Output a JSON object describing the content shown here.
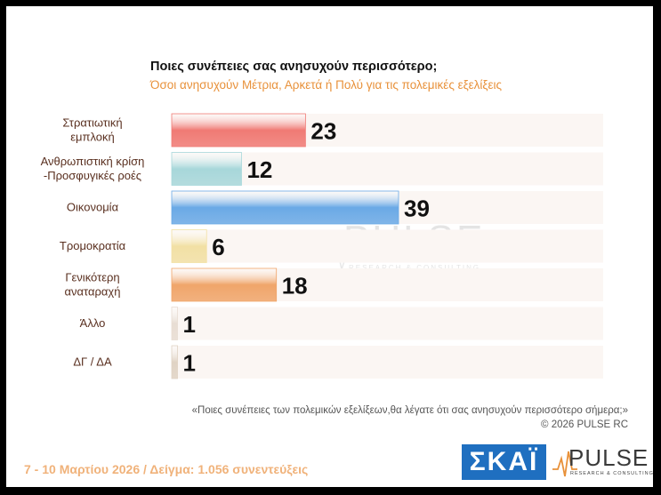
{
  "title": "Ποιες συνέπειες σας ανησυχούν περισσότερο;",
  "subtitle": "Όσοι ανησυχούν Μέτρια, Αρκετά ή Πολύ για τις πολεμικές εξελίξεις",
  "chart_data": {
    "type": "bar",
    "orientation": "horizontal",
    "title": "Ποιες συνέπειες σας ανησυχούν περισσότερο;",
    "subtitle": "Όσοι ανησυχούν Μέτρια, Αρκετά ή Πολύ για τις πολεμικές εξελίξεις",
    "categories": [
      [
        "Στρατιωτική",
        "εμπλοκή"
      ],
      [
        "Ανθρωπιστική κρίση",
        "-Προσφυγικές ροές"
      ],
      [
        "Οικονομία"
      ],
      [
        "Τρομοκρατία"
      ],
      [
        "Γενικότερη",
        "αναταραχή"
      ],
      [
        "Άλλο"
      ],
      [
        "ΔΓ / ΔΑ"
      ]
    ],
    "values": [
      23,
      12,
      39,
      6,
      18,
      1,
      1
    ],
    "colors": [
      "#f07a74",
      "#a7d7da",
      "#6aa9e6",
      "#f2e0a4",
      "#f0a56a",
      "#e8ddd3",
      "#e0d3c4"
    ],
    "xlim": [
      0,
      80
    ],
    "grid": false,
    "legend": "none"
  },
  "footnote": {
    "question": "«Ποιες συνέπειες των πολεμικών εξελίξεων,θα λέγατε ότι σας ανησυχούν περισσότερο σήμερα;»",
    "copyright": "©  2026  PULSE RC"
  },
  "footer": {
    "fieldwork": "7 - 10  Μαρτίου 2026  /  Δείγμα:  1.056 συνεντεύξεις"
  },
  "logos": {
    "skai": "ΣΚΑΪ",
    "pulse": "PULSE",
    "pulse_sub": "RESEARCH & CONSULTING"
  }
}
